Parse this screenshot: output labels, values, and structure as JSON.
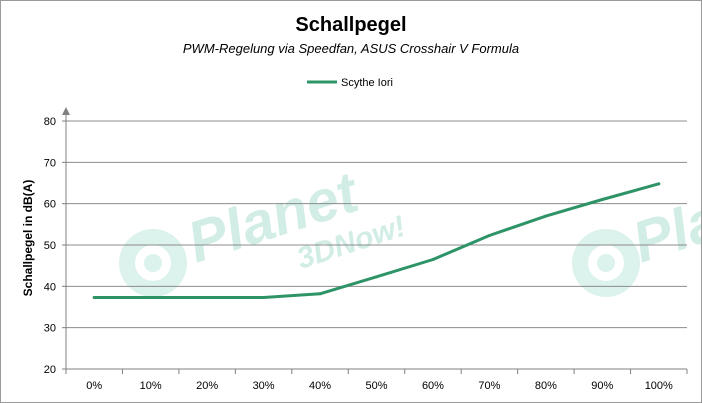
{
  "chart_data": {
    "type": "line",
    "title": "Schallpegel",
    "subtitle": "PWM-Regelung via Speedfan, ASUS Crosshair V Formula",
    "xlabel": "",
    "ylabel": "Schallpegel in dB(A)",
    "categories": [
      "0%",
      "10%",
      "20%",
      "30%",
      "40%",
      "50%",
      "60%",
      "70%",
      "80%",
      "90%",
      "100%"
    ],
    "series": [
      {
        "name": "Scythe Iori",
        "color": "#2e9467",
        "values": [
          37.3,
          37.3,
          37.3,
          37.3,
          38.2,
          42.3,
          46.5,
          52.3,
          57.0,
          61.0,
          64.8
        ]
      }
    ],
    "ylim": [
      20,
      80
    ],
    "yticks": [
      20,
      30,
      40,
      50,
      60,
      70,
      80
    ],
    "grid": "horizontal",
    "legend_position": "top-center"
  },
  "watermark": {
    "brand": "Planet",
    "tagline": "3DNow!",
    "color": "#c9ebe2"
  }
}
